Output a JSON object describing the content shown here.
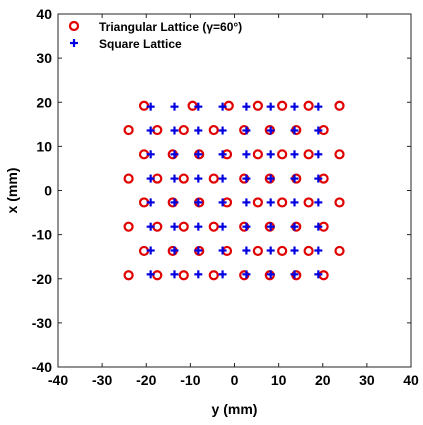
{
  "chart_data": {
    "type": "scatter",
    "title": "",
    "xlabel": "y (mm)",
    "ylabel": "x (mm)",
    "xlim": [
      -40,
      40
    ],
    "ylim": [
      -40,
      40
    ],
    "xticks": [
      -40,
      -30,
      -20,
      -10,
      0,
      10,
      20,
      30,
      40
    ],
    "yticks": [
      -40,
      -30,
      -20,
      -10,
      0,
      10,
      20,
      30,
      40
    ],
    "grid": false,
    "legend_position": "top-left",
    "series": [
      {
        "name": "Triangular Lattice (γ=60°)",
        "marker": "circle",
        "color": "#e00000",
        "points": [
          [
            -20.5,
            19.2
          ],
          [
            -9.5,
            19.2
          ],
          [
            -1.3,
            19.2
          ],
          [
            5.3,
            19.2
          ],
          [
            10.8,
            19.2
          ],
          [
            16.8,
            19.2
          ],
          [
            23.8,
            19.2
          ],
          [
            -24.0,
            13.7
          ],
          [
            -17.5,
            13.7
          ],
          [
            -11.5,
            13.7
          ],
          [
            -4.7,
            13.7
          ],
          [
            2.2,
            13.7
          ],
          [
            8.0,
            13.7
          ],
          [
            14.0,
            13.7
          ],
          [
            20.2,
            13.7
          ],
          [
            -20.5,
            8.2
          ],
          [
            -14.0,
            8.2
          ],
          [
            -8.0,
            8.2
          ],
          [
            -1.7,
            8.2
          ],
          [
            5.3,
            8.2
          ],
          [
            10.8,
            8.2
          ],
          [
            16.8,
            8.2
          ],
          [
            23.8,
            8.2
          ],
          [
            -24.0,
            2.7
          ],
          [
            -17.5,
            2.7
          ],
          [
            -11.5,
            2.7
          ],
          [
            -4.7,
            2.7
          ],
          [
            2.2,
            2.7
          ],
          [
            8.0,
            2.7
          ],
          [
            14.0,
            2.7
          ],
          [
            20.2,
            2.7
          ],
          [
            -20.5,
            -2.7
          ],
          [
            -14.0,
            -2.7
          ],
          [
            -8.0,
            -2.7
          ],
          [
            -1.7,
            -2.7
          ],
          [
            5.3,
            -2.7
          ],
          [
            10.8,
            -2.7
          ],
          [
            16.8,
            -2.7
          ],
          [
            23.8,
            -2.7
          ],
          [
            -24.0,
            -8.2
          ],
          [
            -17.5,
            -8.2
          ],
          [
            -11.5,
            -8.2
          ],
          [
            -4.7,
            -8.2
          ],
          [
            2.2,
            -8.2
          ],
          [
            8.0,
            -8.2
          ],
          [
            14.0,
            -8.2
          ],
          [
            20.2,
            -8.2
          ],
          [
            -20.5,
            -13.7
          ],
          [
            -14.0,
            -13.7
          ],
          [
            -8.0,
            -13.7
          ],
          [
            -1.7,
            -13.7
          ],
          [
            5.3,
            -13.7
          ],
          [
            10.8,
            -13.7
          ],
          [
            16.8,
            -13.7
          ],
          [
            23.8,
            -13.7
          ],
          [
            -24.0,
            -19.2
          ],
          [
            -17.5,
            -19.2
          ],
          [
            -11.5,
            -19.2
          ],
          [
            -4.7,
            -19.2
          ],
          [
            2.2,
            -19.2
          ],
          [
            8.0,
            -19.2
          ],
          [
            14.0,
            -19.2
          ],
          [
            20.2,
            -19.2
          ]
        ]
      },
      {
        "name": "Square Lattice",
        "marker": "plus",
        "color": "#0000e0",
        "points": [
          [
            -19.0,
            19.0
          ],
          [
            -13.6,
            19.0
          ],
          [
            -8.2,
            19.0
          ],
          [
            -2.7,
            19.0
          ],
          [
            2.7,
            19.0
          ],
          [
            8.2,
            19.0
          ],
          [
            13.6,
            19.0
          ],
          [
            19.0,
            19.0
          ],
          [
            -19.0,
            13.6
          ],
          [
            -13.6,
            13.6
          ],
          [
            -8.2,
            13.6
          ],
          [
            -2.7,
            13.6
          ],
          [
            2.7,
            13.6
          ],
          [
            8.2,
            13.6
          ],
          [
            13.6,
            13.6
          ],
          [
            19.0,
            13.6
          ],
          [
            -19.0,
            8.2
          ],
          [
            -13.6,
            8.2
          ],
          [
            -8.2,
            8.2
          ],
          [
            -2.7,
            8.2
          ],
          [
            2.7,
            8.2
          ],
          [
            8.2,
            8.2
          ],
          [
            13.6,
            8.2
          ],
          [
            19.0,
            8.2
          ],
          [
            -19.0,
            2.7
          ],
          [
            -13.6,
            2.7
          ],
          [
            -8.2,
            2.7
          ],
          [
            -2.7,
            2.7
          ],
          [
            2.7,
            2.7
          ],
          [
            8.2,
            2.7
          ],
          [
            13.6,
            2.7
          ],
          [
            19.0,
            2.7
          ],
          [
            -19.0,
            -2.7
          ],
          [
            -13.6,
            -2.7
          ],
          [
            -8.2,
            -2.7
          ],
          [
            -2.7,
            -2.7
          ],
          [
            2.7,
            -2.7
          ],
          [
            8.2,
            -2.7
          ],
          [
            13.6,
            -2.7
          ],
          [
            19.0,
            -2.7
          ],
          [
            -19.0,
            -8.2
          ],
          [
            -13.6,
            -8.2
          ],
          [
            -8.2,
            -8.2
          ],
          [
            -2.7,
            -8.2
          ],
          [
            2.7,
            -8.2
          ],
          [
            8.2,
            -8.2
          ],
          [
            13.6,
            -8.2
          ],
          [
            19.0,
            -8.2
          ],
          [
            -19.0,
            -13.6
          ],
          [
            -13.6,
            -13.6
          ],
          [
            -8.2,
            -13.6
          ],
          [
            -2.7,
            -13.6
          ],
          [
            2.7,
            -13.6
          ],
          [
            8.2,
            -13.6
          ],
          [
            13.6,
            -13.6
          ],
          [
            19.0,
            -13.6
          ],
          [
            -19.0,
            -19.0
          ],
          [
            -13.6,
            -19.0
          ],
          [
            -8.2,
            -19.0
          ],
          [
            -2.7,
            -19.0
          ],
          [
            2.7,
            -19.0
          ],
          [
            8.2,
            -19.0
          ],
          [
            13.6,
            -19.0
          ],
          [
            19.0,
            -19.0
          ]
        ]
      }
    ]
  }
}
